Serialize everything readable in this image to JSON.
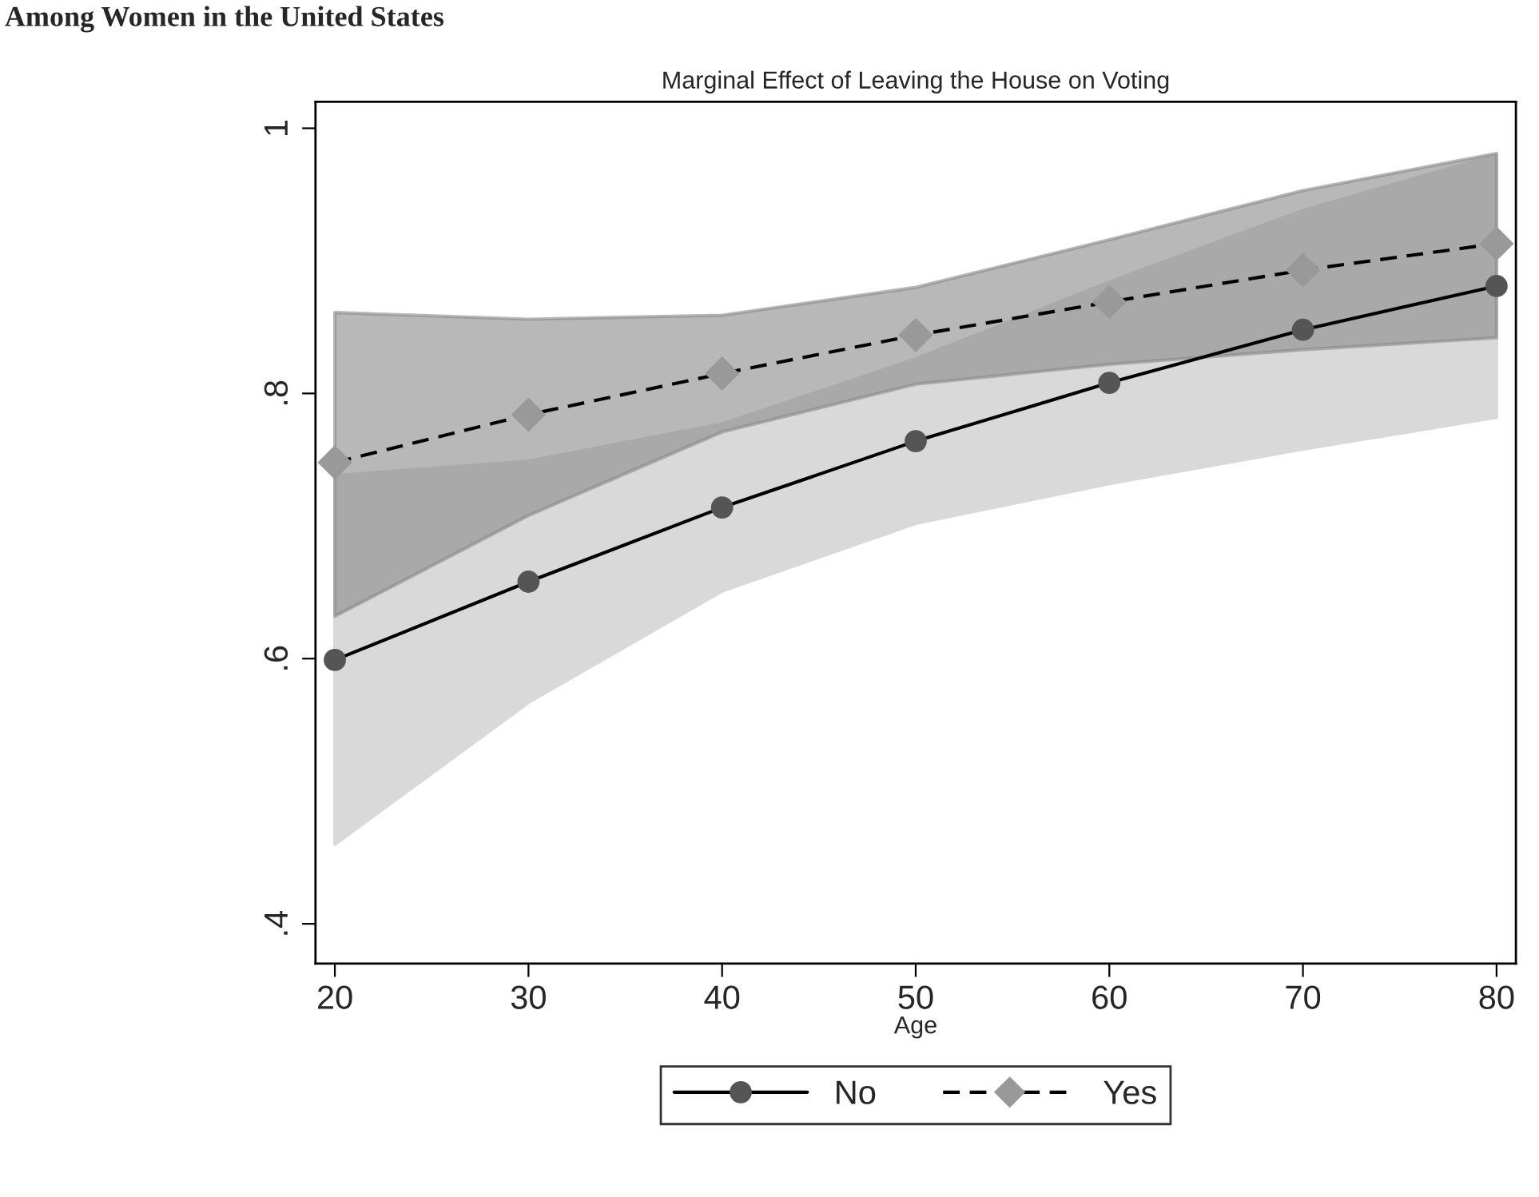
{
  "chart_data": {
    "type": "line",
    "title": "Marginal Effect of Leaving the House on Voting",
    "xlabel": "Age",
    "annotations": [
      "Among Women in the United States"
    ],
    "x": [
      20,
      30,
      40,
      50,
      60,
      70,
      80
    ],
    "series": [
      {
        "name": "No",
        "color": "#555555",
        "marker": "circle",
        "line_style": "solid",
        "values": [
          0.599,
          0.658,
          0.714,
          0.764,
          0.808,
          0.848,
          0.881
        ],
        "lower": [
          0.46,
          0.567,
          0.651,
          0.702,
          0.732,
          0.758,
          0.782
        ],
        "upper": [
          0.738,
          0.749,
          0.777,
          0.826,
          0.884,
          0.938,
          0.98
        ]
      },
      {
        "name": "Yes",
        "color": "#999999",
        "marker": "diamond",
        "line_style": "dashed",
        "values": [
          0.748,
          0.784,
          0.815,
          0.844,
          0.869,
          0.893,
          0.913
        ],
        "lower": [
          0.632,
          0.708,
          0.771,
          0.807,
          0.822,
          0.833,
          0.842
        ],
        "upper": [
          0.861,
          0.856,
          0.859,
          0.88,
          0.916,
          0.953,
          0.981
        ]
      }
    ],
    "xlim": [
      19,
      81
    ],
    "xticks": [
      20,
      30,
      40,
      50,
      60,
      70,
      80
    ],
    "ylim": [
      0.37,
      1.02
    ],
    "yticks": [
      {
        "value": 0.4,
        "label": ".4"
      },
      {
        "value": 0.6,
        "label": ".6"
      },
      {
        "value": 0.8,
        "label": ".8"
      },
      {
        "value": 1,
        "label": "1"
      }
    ],
    "grid": false,
    "legend": "bottom"
  }
}
